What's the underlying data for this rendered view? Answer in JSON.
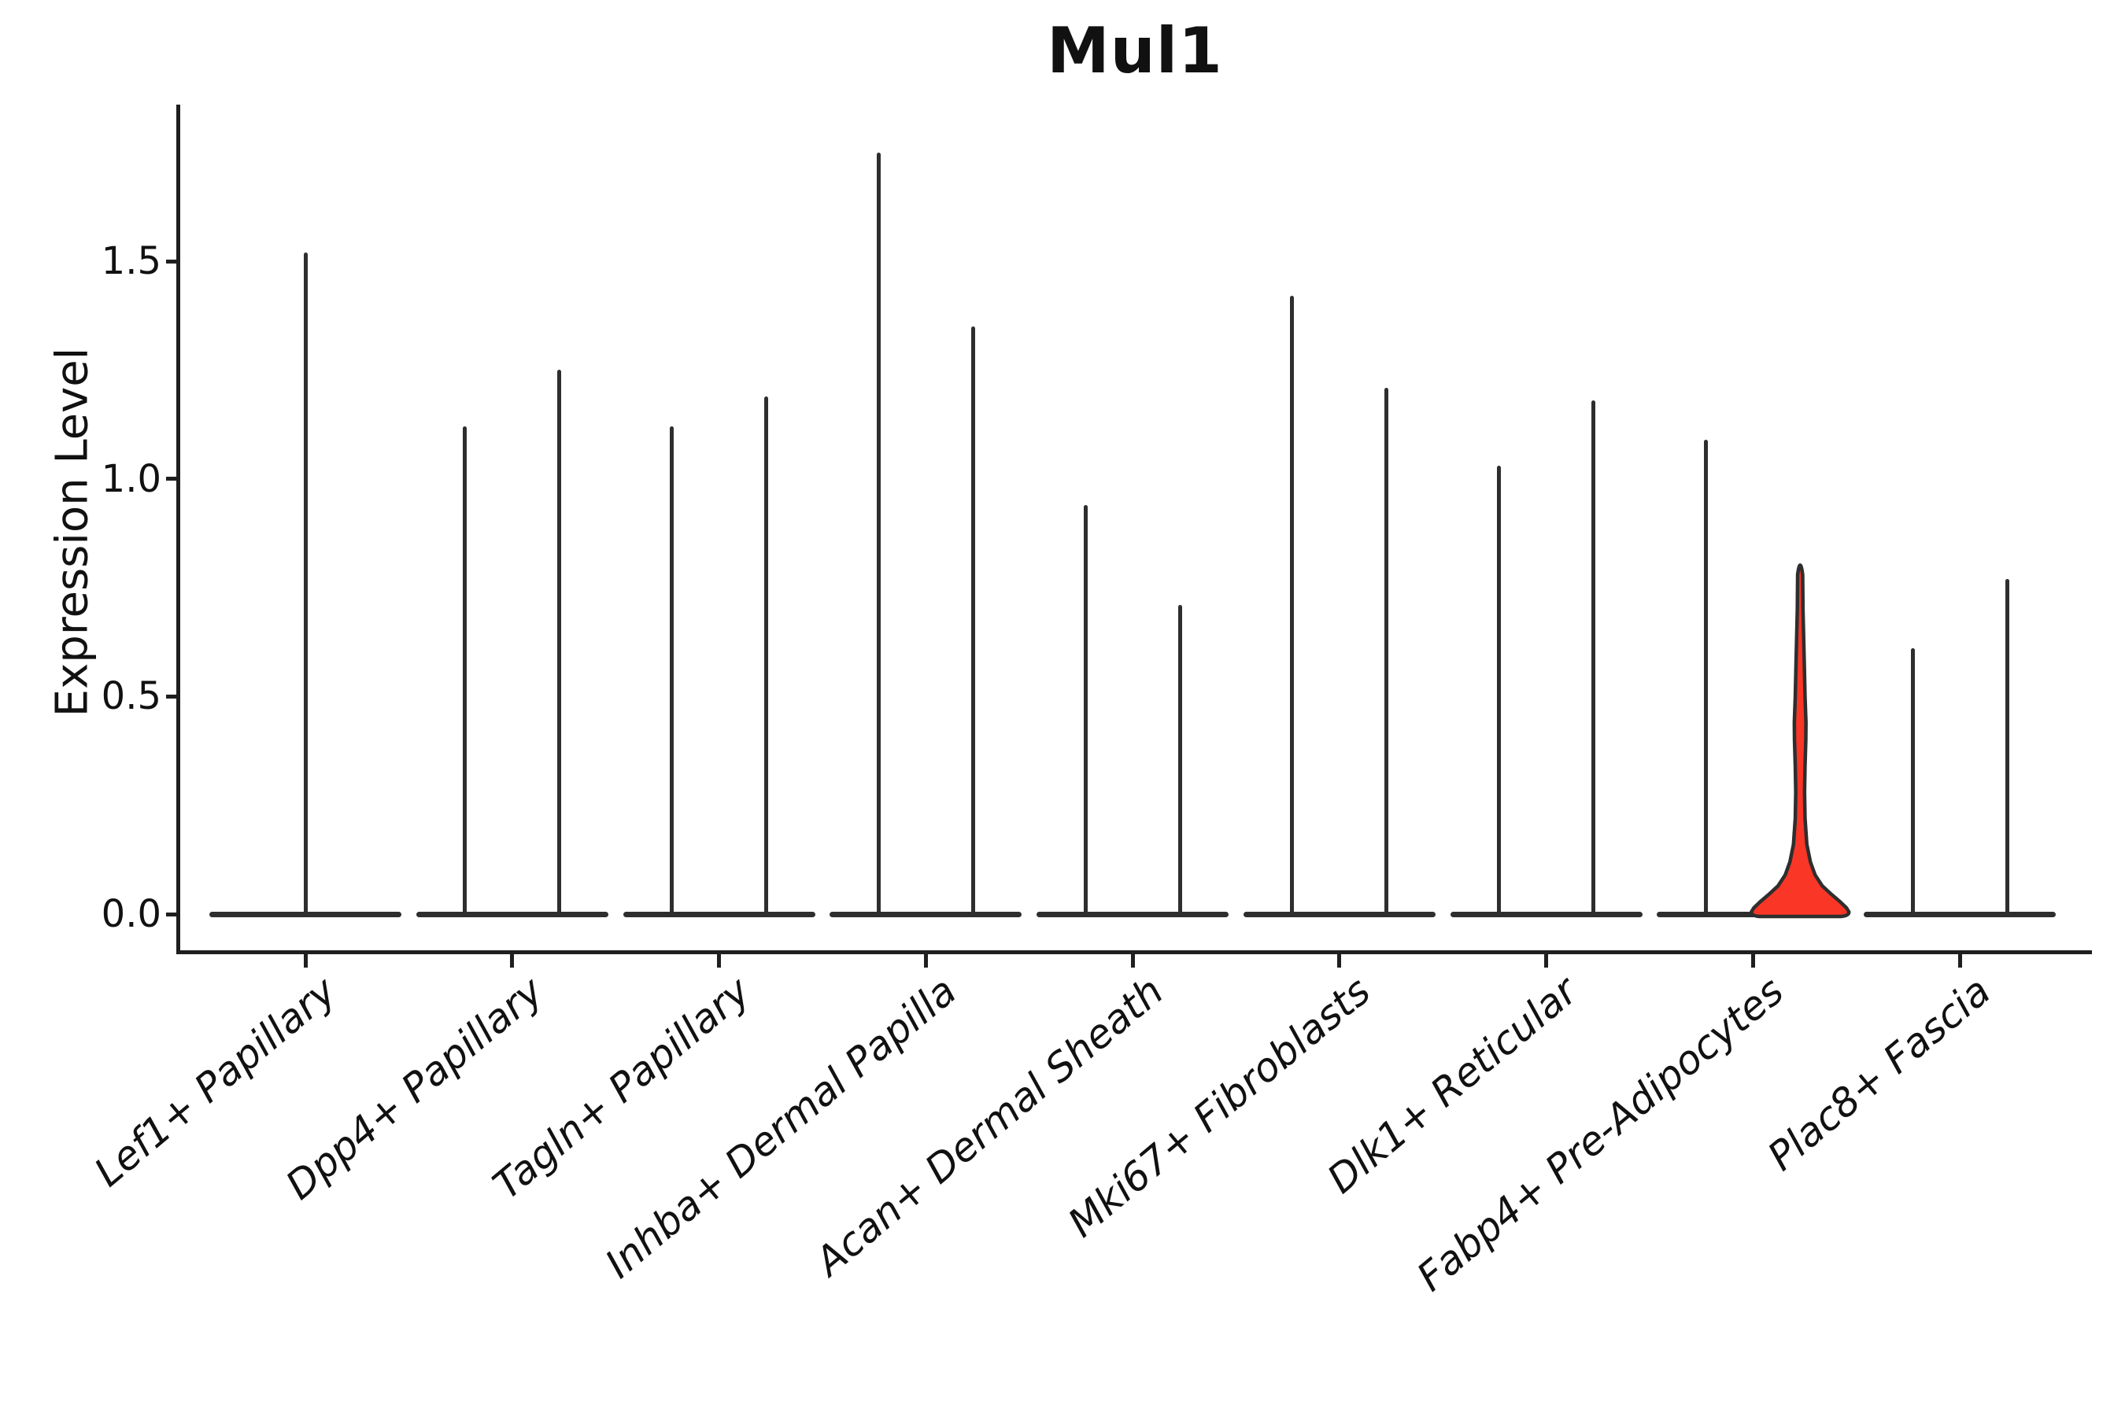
{
  "title": "Mul1",
  "y_axis": {
    "label": "Expression Level",
    "tick_labels": [
      "0.0",
      "0.5",
      "1.0",
      "1.5"
    ],
    "tick_values": [
      0.0,
      0.5,
      1.0,
      1.5
    ]
  },
  "x_axis": {
    "categories": [
      "Lef1+ Papillary",
      "Dpp4+ Papillary",
      "Tagln+ Papillary",
      "Inhba+ Dermal Papilla",
      "Acan+ Dermal Sheath",
      "Mki67+ Fibroblasts",
      "Dlk1+ Reticular",
      "Fabp4+ Pre-Adipocytes",
      "Plac8+ Fascia"
    ]
  },
  "colors": {
    "background": "#ffffff",
    "violin_stroke": "#2e2e2e",
    "highlight_fill": "#FA3627",
    "axis": "#1f1f1f",
    "text": "#111111"
  },
  "chart_data": {
    "type": "violin",
    "title": "Mul1",
    "xlabel": "",
    "ylabel": "Expression Level",
    "ylim": [
      -0.09,
      1.86
    ],
    "yticks": [
      0.0,
      0.5,
      1.0,
      1.5
    ],
    "ytick_labels": [
      "0.0",
      "0.5",
      "1.0",
      "1.5"
    ],
    "grid": false,
    "legend": false,
    "categories": [
      "Lef1+ Papillary",
      "Dpp4+ Papillary",
      "Tagln+ Papillary",
      "Inhba+ Dermal Papilla",
      "Acan+ Dermal Sheath",
      "Mki67+ Fibroblasts",
      "Dlk1+ Reticular",
      "Fabp4+ Pre-Adipocytes",
      "Plac8+ Fascia"
    ],
    "violin_description": "Most violins are collapsed at expression 0 (wide flat base) with a single thin spike up to the max expression; only the right violin of Fabp4+ Pre-Adipocytes is a red-filled violin with visible density bulge near 0.",
    "violins": [
      {
        "category": "Lef1+ Papillary",
        "side": "center",
        "max_expression": 1.52,
        "filled": false
      },
      {
        "category": "Dpp4+ Papillary",
        "side": "left",
        "max_expression": 1.12,
        "filled": false
      },
      {
        "category": "Dpp4+ Papillary",
        "side": "right",
        "max_expression": 1.25,
        "filled": false
      },
      {
        "category": "Tagln+ Papillary",
        "side": "left",
        "max_expression": 1.12,
        "filled": false
      },
      {
        "category": "Tagln+ Papillary",
        "side": "right",
        "max_expression": 1.19,
        "filled": false
      },
      {
        "category": "Inhba+ Dermal Papilla",
        "side": "left",
        "max_expression": 1.75,
        "filled": false
      },
      {
        "category": "Inhba+ Dermal Papilla",
        "side": "right",
        "max_expression": 1.35,
        "filled": false
      },
      {
        "category": "Acan+ Dermal Sheath",
        "side": "left",
        "max_expression": 0.94,
        "filled": false
      },
      {
        "category": "Acan+ Dermal Sheath",
        "side": "right",
        "max_expression": 0.71,
        "filled": false
      },
      {
        "category": "Mki67+ Fibroblasts",
        "side": "left",
        "max_expression": 1.42,
        "filled": false
      },
      {
        "category": "Mki67+ Fibroblasts",
        "side": "right",
        "max_expression": 1.21,
        "filled": false
      },
      {
        "category": "Dlk1+ Reticular",
        "side": "left",
        "max_expression": 1.03,
        "filled": false
      },
      {
        "category": "Dlk1+ Reticular",
        "side": "right",
        "max_expression": 1.18,
        "filled": false
      },
      {
        "category": "Fabp4+ Pre-Adipocytes",
        "side": "left",
        "max_expression": 1.09,
        "filled": false
      },
      {
        "category": "Fabp4+ Pre-Adipocytes",
        "side": "right",
        "max_expression": 0.82,
        "filled": true,
        "fill_color": "#FA3627"
      },
      {
        "category": "Plac8+ Fascia",
        "side": "left",
        "max_expression": 0.61,
        "filled": false
      },
      {
        "category": "Plac8+ Fascia",
        "side": "right",
        "max_expression": 0.77,
        "filled": false
      }
    ]
  }
}
